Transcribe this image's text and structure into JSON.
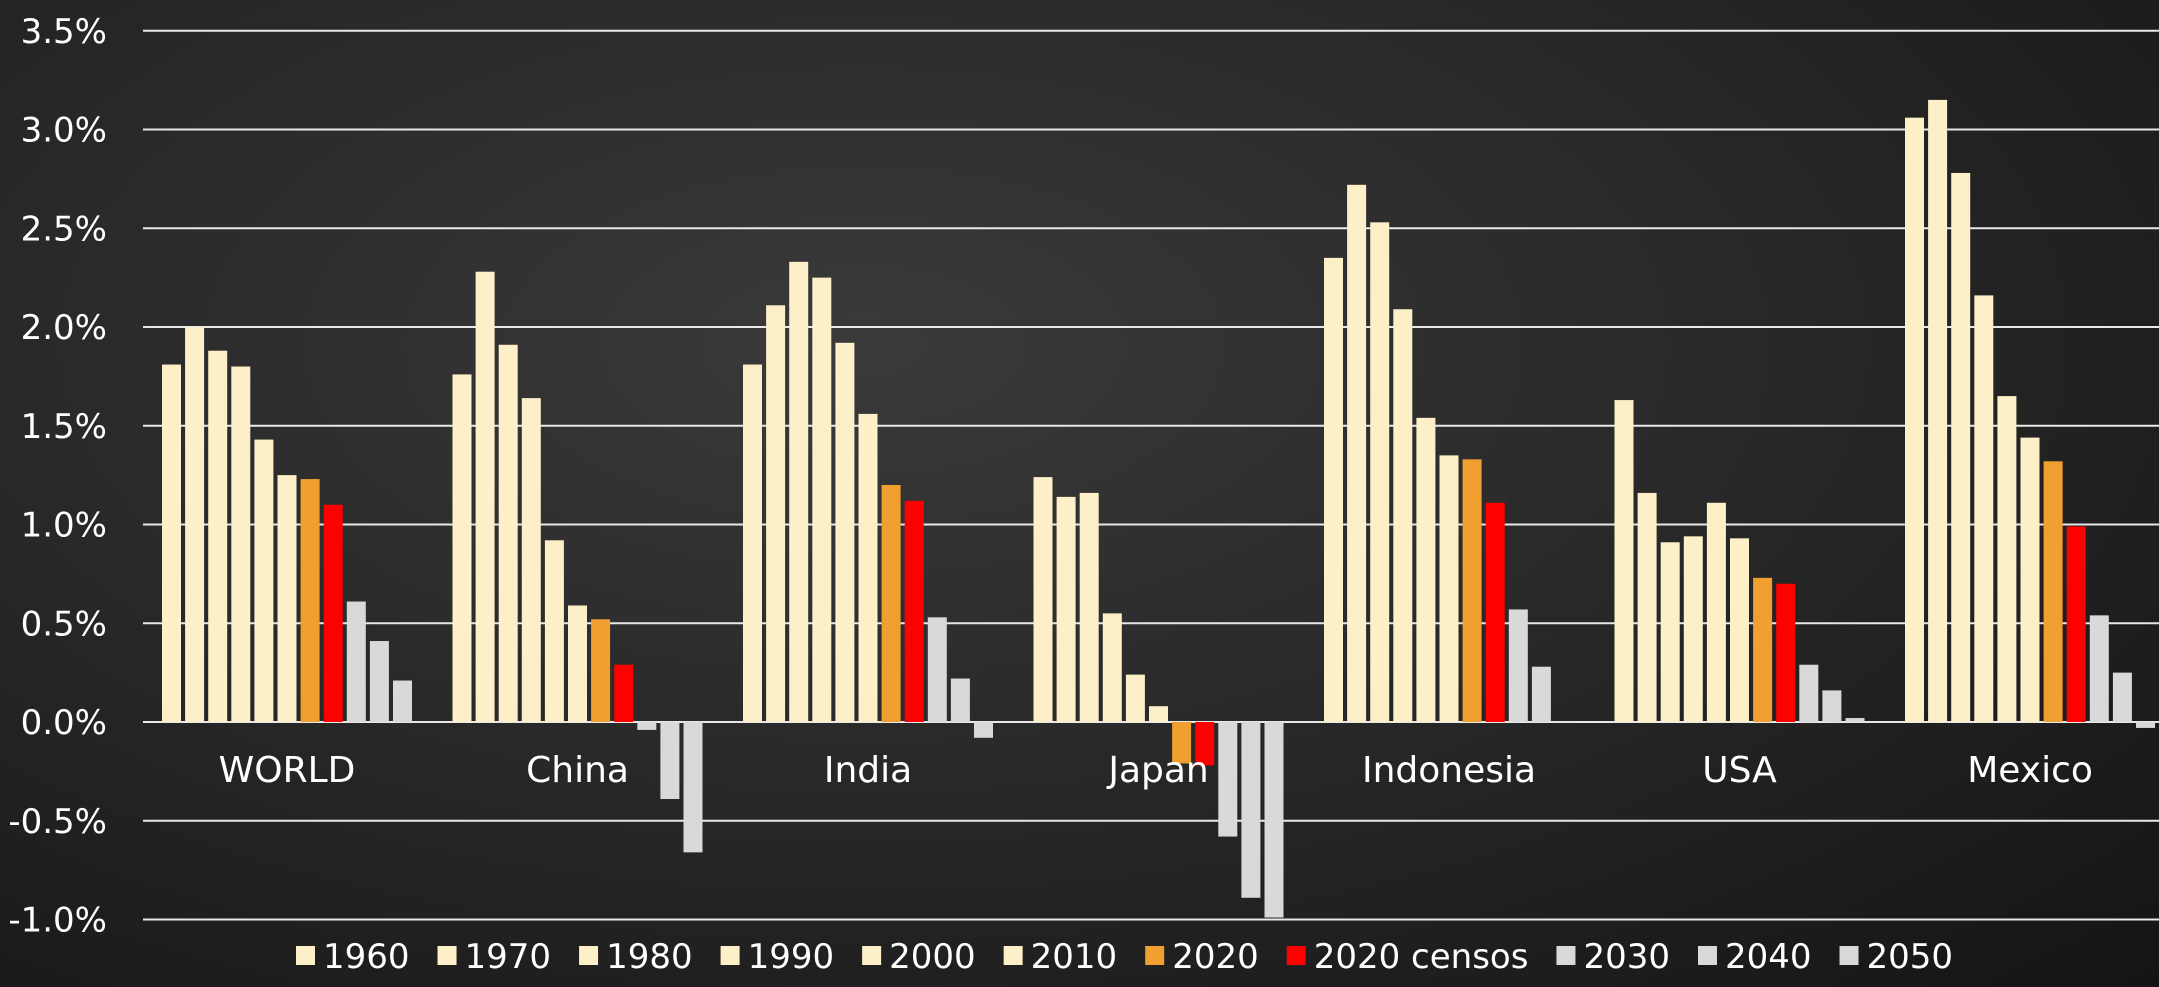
{
  "chart_data": {
    "type": "bar",
    "categories": [
      "WORLD",
      "China",
      "India",
      "Japan",
      "Indonesia",
      "USA",
      "Mexico"
    ],
    "series": [
      {
        "name": "1960",
        "color": "#fdefc8",
        "values": [
          1.81,
          1.76,
          1.81,
          1.24,
          2.35,
          1.63,
          3.06
        ]
      },
      {
        "name": "1970",
        "color": "#fdefc8",
        "values": [
          2.0,
          2.28,
          2.11,
          1.14,
          2.72,
          1.16,
          3.15
        ]
      },
      {
        "name": "1980",
        "color": "#fdefc8",
        "values": [
          1.88,
          1.91,
          2.33,
          1.16,
          2.53,
          0.91,
          2.78
        ]
      },
      {
        "name": "1990",
        "color": "#fdefc8",
        "values": [
          1.8,
          1.64,
          2.25,
          0.55,
          2.09,
          0.94,
          2.16
        ]
      },
      {
        "name": "2000",
        "color": "#fdefc8",
        "values": [
          1.43,
          0.92,
          1.92,
          0.24,
          1.54,
          1.11,
          1.65
        ]
      },
      {
        "name": "2010",
        "color": "#fdefc8",
        "values": [
          1.25,
          0.59,
          1.56,
          0.08,
          1.35,
          0.93,
          1.44
        ]
      },
      {
        "name": "2020",
        "color": "#f0a030",
        "values": [
          1.23,
          0.52,
          1.2,
          -0.21,
          1.33,
          0.73,
          1.32
        ]
      },
      {
        "name": "2020 censos",
        "color": "#ff0000",
        "values": [
          1.1,
          0.29,
          1.12,
          -0.22,
          1.11,
          0.7,
          0.99
        ]
      },
      {
        "name": "2030",
        "color": "#d9d9d9",
        "values": [
          0.61,
          -0.04,
          0.53,
          -0.58,
          0.57,
          0.29,
          0.54
        ]
      },
      {
        "name": "2040",
        "color": "#d9d9d9",
        "values": [
          0.41,
          -0.39,
          0.22,
          -0.89,
          0.28,
          0.16,
          0.25
        ]
      },
      {
        "name": "2050",
        "color": "#d9d9d9",
        "values": [
          0.21,
          -0.66,
          -0.08,
          -0.99,
          0.0,
          0.02,
          -0.03
        ]
      }
    ],
    "yticks": [
      "3.5%",
      "3.0%",
      "2.5%",
      "2.0%",
      "1.5%",
      "1.0%",
      "0.5%",
      "0.0%",
      "-0.5%",
      "-1.0%"
    ],
    "ylim": [
      -1.0,
      3.5
    ],
    "grid": true,
    "legend": "bottom"
  }
}
